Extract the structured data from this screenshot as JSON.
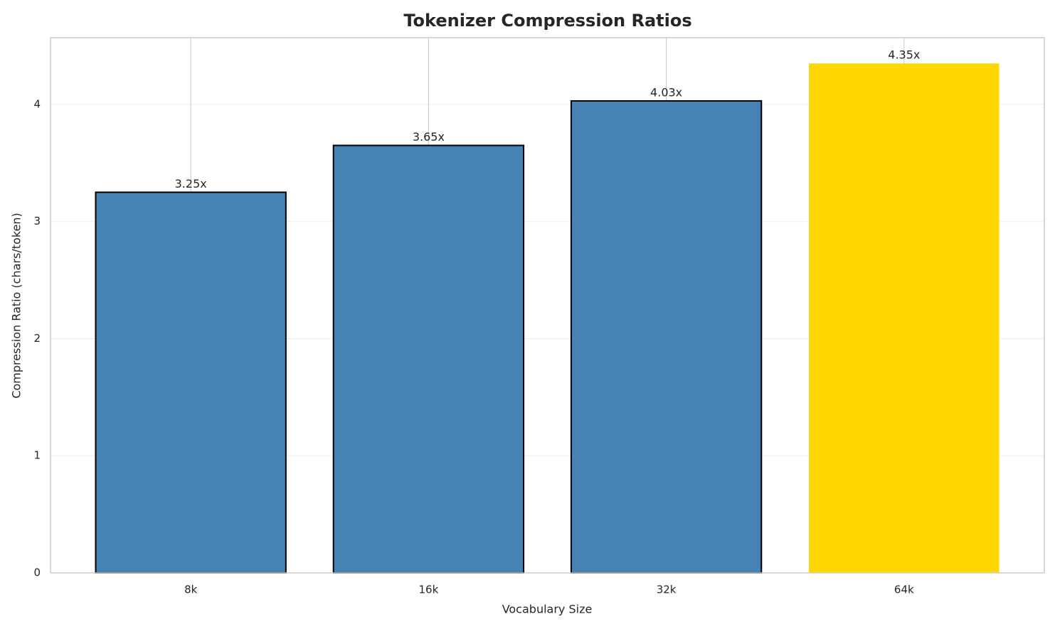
{
  "chart_data": {
    "type": "bar",
    "title": "Tokenizer Compression Ratios",
    "x_label": "Vocabulary Size",
    "y_label": "Compression Ratio (chars/token)",
    "categories": [
      "8k",
      "16k",
      "32k",
      "64k"
    ],
    "values": [
      3.25,
      3.65,
      4.03,
      4.35
    ],
    "value_labels": [
      "3.25x",
      "3.65x",
      "4.03x",
      "4.35x"
    ],
    "colors": [
      "#4682b4",
      "#4682b4",
      "#4682b4",
      "#ffd700"
    ],
    "edgecolors": [
      "#000000",
      "#000000",
      "#000000",
      "none"
    ],
    "ylim": [
      0,
      4.57
    ],
    "yticks": [
      0,
      1,
      2,
      3,
      4
    ],
    "grid": true
  }
}
